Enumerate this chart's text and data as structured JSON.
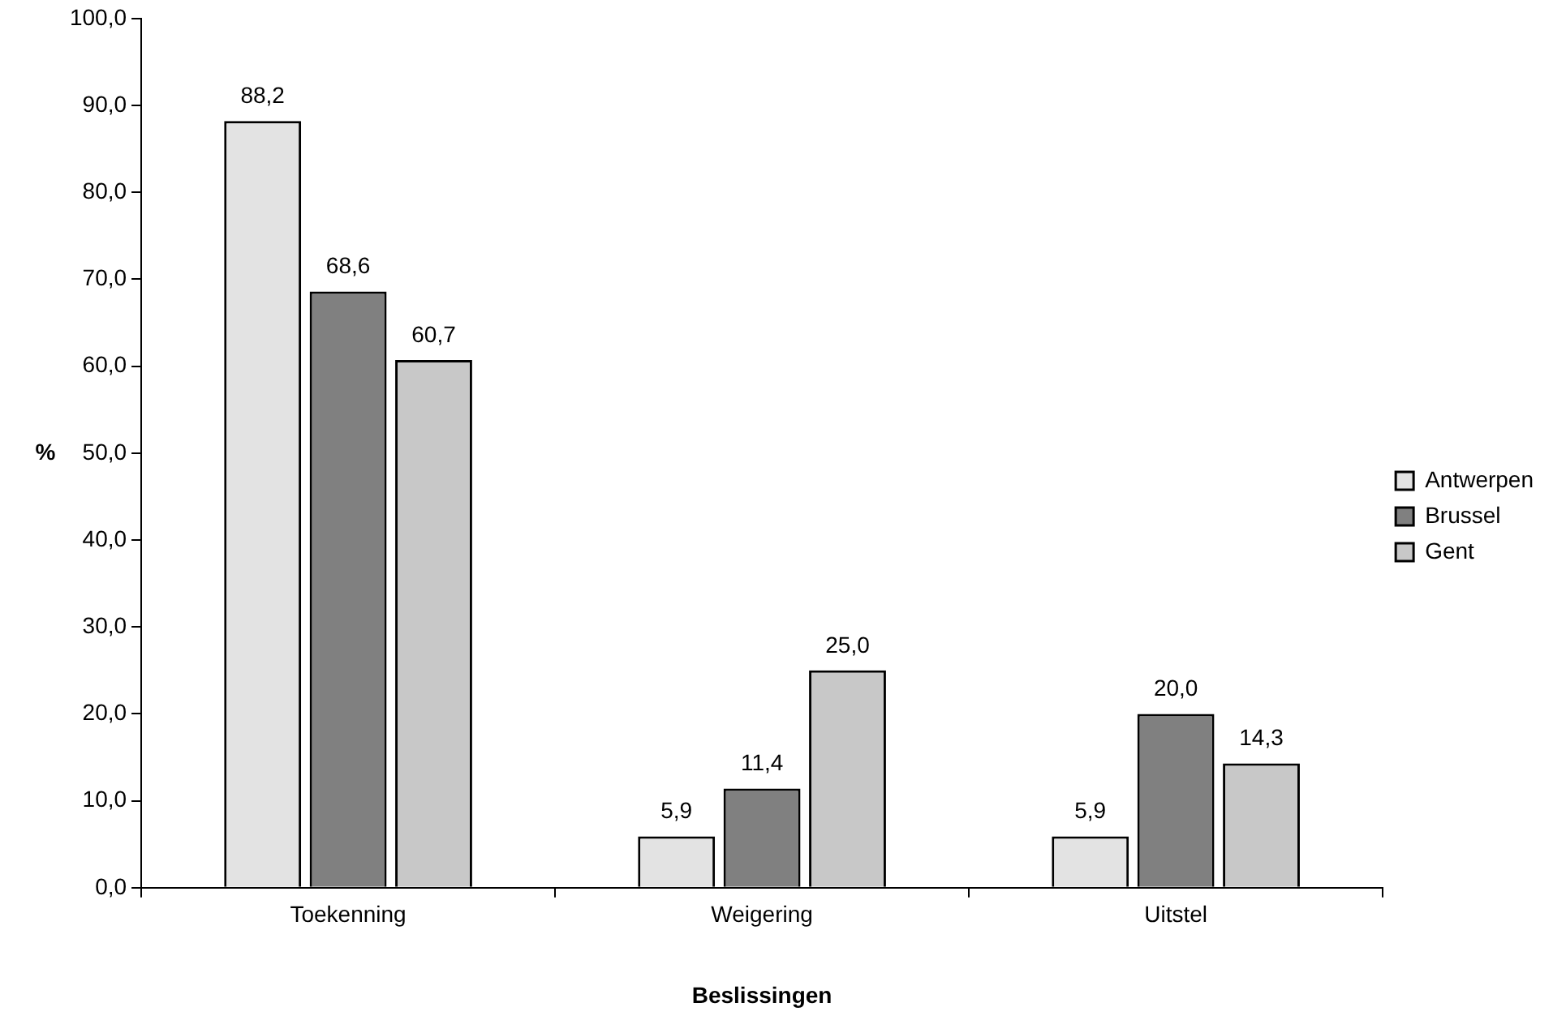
{
  "chart_data": {
    "type": "bar",
    "xlabel": "Beslissingen",
    "ylabel": "%",
    "categories": [
      "Toekenning",
      "Weigering",
      "Uitstel"
    ],
    "series": [
      {
        "name": "Antwerpen",
        "color": "#e3e3e3",
        "values": [
          88.2,
          5.9,
          5.9
        ],
        "value_labels": [
          "88,2",
          "5,9",
          "5,9"
        ]
      },
      {
        "name": "Brussel",
        "color": "#808080",
        "values": [
          68.6,
          11.4,
          20.0
        ],
        "value_labels": [
          "68,6",
          "11,4",
          "20,0"
        ]
      },
      {
        "name": "Gent",
        "color": "#c8c8c8",
        "values": [
          60.7,
          25.0,
          14.3
        ],
        "value_labels": [
          "60,7",
          "25,0",
          "14,3"
        ]
      }
    ],
    "ylim": [
      0,
      100
    ],
    "yticks": [
      {
        "value": 0,
        "label": "0,0"
      },
      {
        "value": 10,
        "label": "10,0"
      },
      {
        "value": 20,
        "label": "20,0"
      },
      {
        "value": 30,
        "label": "30,0"
      },
      {
        "value": 40,
        "label": "40,0"
      },
      {
        "value": 50,
        "label": "50,0"
      },
      {
        "value": 60,
        "label": "60,0"
      },
      {
        "value": 70,
        "label": "70,0"
      },
      {
        "value": 80,
        "label": "80,0"
      },
      {
        "value": 90,
        "label": "90,0"
      },
      {
        "value": 100,
        "label": "100,0"
      }
    ],
    "grid": false,
    "legend": "right"
  }
}
